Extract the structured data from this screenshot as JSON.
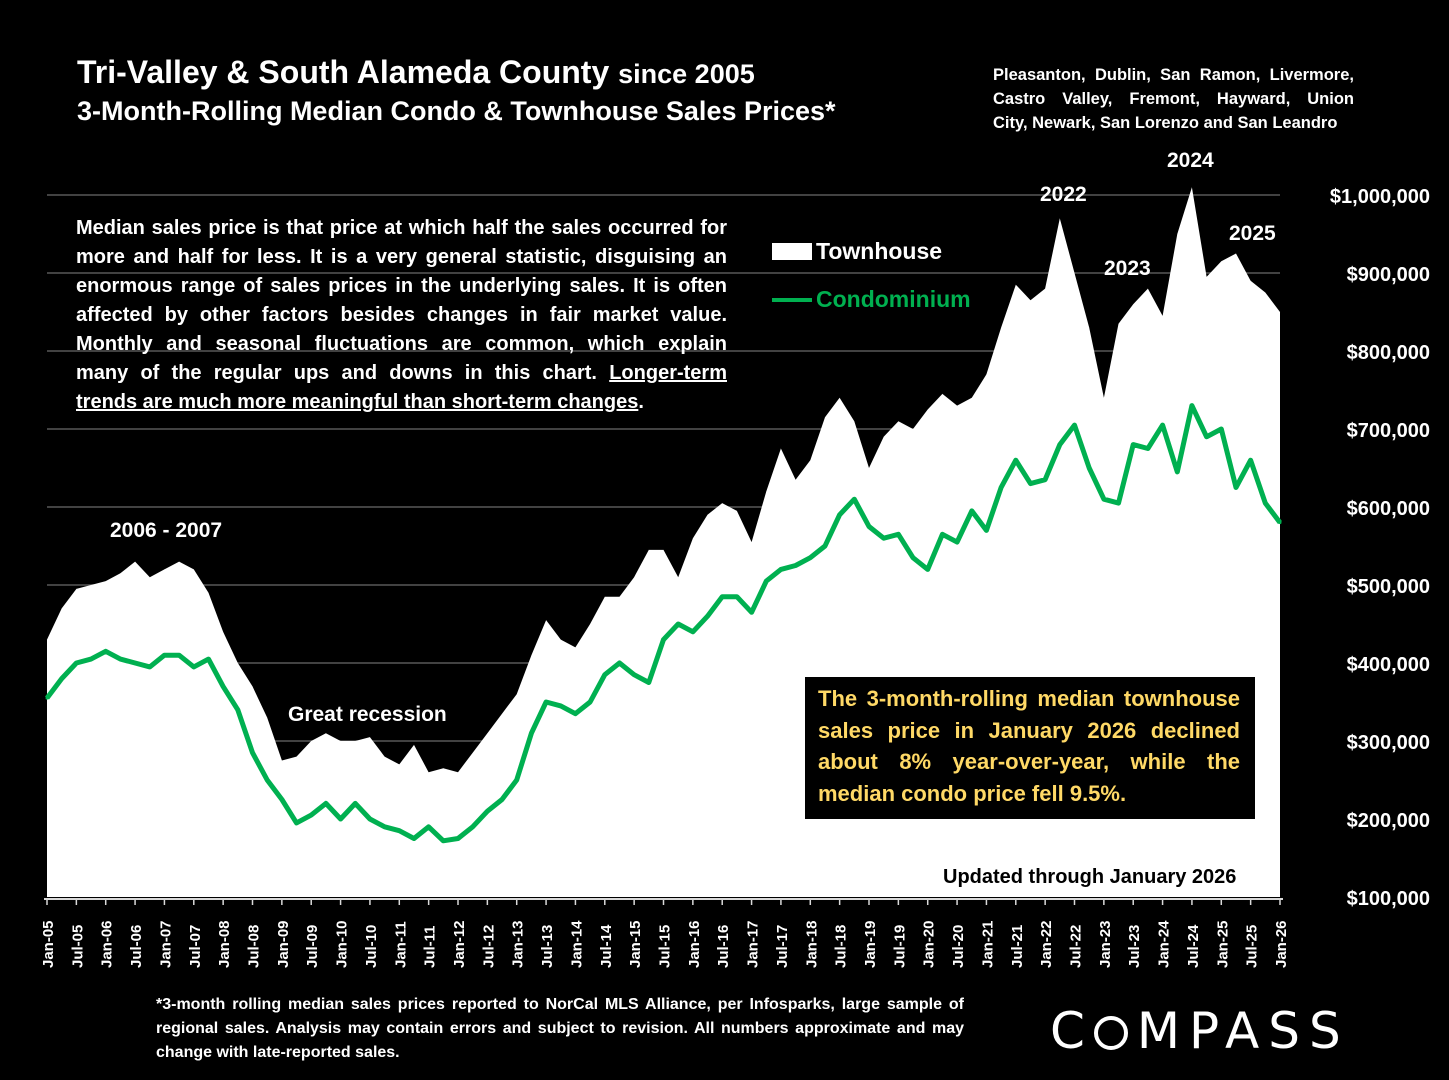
{
  "header": {
    "title_main": "Tri-Valley & South Alameda County",
    "title_since": "since 2005",
    "subtitle": "3-Month-Rolling Median Condo & Townhouse Sales Prices*",
    "cities_lines": [
      "Pleasanton, Dublin, San Ramon, Livermore,",
      "Castro Valley, Fremont, Hayward, Union",
      "City, Newark, San Lorenzo and San Leandro"
    ]
  },
  "explanation": {
    "text": "Median sales price is that price at which half the sales occurred for more and half for less. It is a very general statistic, disguising an enormous range of sales prices in the underlying sales. It is often affected by other factors besides changes in fair market value. Monthly and seasonal fluctuations are common, which explain many of the regular ups and downs in this chart. ",
    "underlined": "Longer-term trends are much more meaningful than short-term changes",
    "end": "."
  },
  "callout": "The 3-month-rolling median townhouse sales price in January 2026 declined about 8% year-over-year, while the median condo price fell 9.5%.",
  "updated": "Updated through January 2026",
  "footnote": "*3-month rolling median sales prices reported to NorCal MLS Alliance, per Infosparks, large sample of regional sales. Analysis may contain errors and subject to revision. All numbers approximate and may change with late-reported sales.",
  "logo": "COMPASS",
  "colors": {
    "townhouse": "#ffffff",
    "condominium": "#00b050",
    "background": "#000000",
    "callout_text": "#ffd966",
    "grid": "#595959"
  },
  "chart_data": {
    "type": "area+line",
    "x_tick_labels": [
      "Jan-05",
      "Jul-05",
      "Jan-06",
      "Jul-06",
      "Jan-07",
      "Jul-07",
      "Jan-08",
      "Jul-08",
      "Jan-09",
      "Jul-09",
      "Jan-10",
      "Jul-10",
      "Jan-11",
      "Jul-11",
      "Jan-12",
      "Jul-12",
      "Jan-13",
      "Jul-13",
      "Jan-14",
      "Jul-14",
      "Jan-15",
      "Jul-15",
      "Jan-16",
      "Jul-16",
      "Jan-17",
      "Jul-17",
      "Jan-18",
      "Jul-18",
      "Jan-19",
      "Jul-19",
      "Jan-20",
      "Jul-20",
      "Jan-21",
      "Jul-21",
      "Jan-22",
      "Jul-22",
      "Jan-23",
      "Jul-23",
      "Jan-24",
      "Jul-24",
      "Jan-25",
      "Jul-25",
      "Jan-26"
    ],
    "y_tick_labels": [
      "$100,000",
      "$200,000",
      "$300,000",
      "$400,000",
      "$500,000",
      "$600,000",
      "$700,000",
      "$800,000",
      "$900,000",
      "$1,000,000"
    ],
    "ylim": [
      100000,
      1000000
    ],
    "y_axis_side": "right",
    "grid": true,
    "x_start": "Jan-05",
    "x_step_months": 3,
    "legend_placement": "top-center",
    "series": [
      {
        "name": "Townhouse",
        "style": "area",
        "values": [
          430000,
          470000,
          495000,
          500000,
          505000,
          515000,
          530000,
          510000,
          520000,
          530000,
          520000,
          490000,
          440000,
          400000,
          370000,
          330000,
          275000,
          280000,
          300000,
          310000,
          300000,
          300000,
          305000,
          280000,
          270000,
          295000,
          260000,
          265000,
          260000,
          285000,
          310000,
          335000,
          360000,
          410000,
          455000,
          430000,
          420000,
          450000,
          485000,
          485000,
          510000,
          545000,
          545000,
          510000,
          560000,
          590000,
          605000,
          595000,
          555000,
          620000,
          675000,
          635000,
          660000,
          715000,
          740000,
          710000,
          650000,
          690000,
          710000,
          700000,
          725000,
          745000,
          730000,
          740000,
          770000,
          830000,
          885000,
          865000,
          880000,
          970000,
          900000,
          830000,
          740000,
          835000,
          860000,
          880000,
          845000,
          950000,
          1010000,
          895000,
          915000,
          925000,
          890000,
          875000,
          850000
        ]
      },
      {
        "name": "Condominium",
        "style": "line",
        "values": [
          355000,
          380000,
          400000,
          405000,
          415000,
          405000,
          400000,
          395000,
          410000,
          410000,
          395000,
          405000,
          370000,
          340000,
          285000,
          250000,
          225000,
          195000,
          205000,
          220000,
          200000,
          220000,
          200000,
          190000,
          185000,
          175000,
          190000,
          172000,
          175000,
          190000,
          210000,
          225000,
          250000,
          310000,
          350000,
          345000,
          335000,
          350000,
          385000,
          400000,
          385000,
          375000,
          430000,
          450000,
          440000,
          460000,
          485000,
          485000,
          465000,
          505000,
          520000,
          525000,
          535000,
          550000,
          590000,
          610000,
          575000,
          560000,
          565000,
          535000,
          520000,
          565000,
          555000,
          595000,
          570000,
          625000,
          660000,
          630000,
          635000,
          680000,
          705000,
          650000,
          610000,
          605000,
          680000,
          675000,
          705000,
          645000,
          730000,
          690000,
          700000,
          625000,
          660000,
          605000,
          580000
        ]
      }
    ],
    "annotations": [
      {
        "text": "2006 - 2007"
      },
      {
        "text": "Great recession"
      },
      {
        "text": "2022"
      },
      {
        "text": "2023"
      },
      {
        "text": "2024"
      },
      {
        "text": "2025"
      }
    ]
  }
}
